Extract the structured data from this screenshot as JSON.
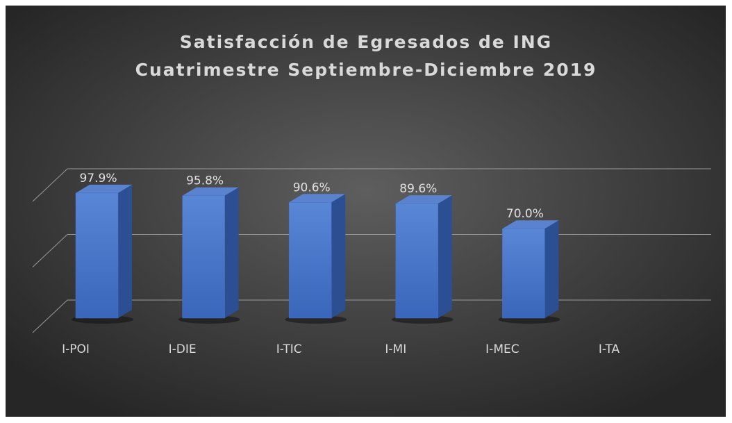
{
  "chart_data": {
    "type": "bar3d",
    "title": [
      "Satisfacción de Egresados de ING",
      "Cuatrimestre Septiembre-Diciembre 2019"
    ],
    "categories": [
      "I-POI",
      "I-DIE",
      "I-TIC",
      "I-MI",
      "I-MEC",
      "I-TA"
    ],
    "values": [
      97.9,
      95.8,
      90.6,
      89.6,
      70.0,
      null
    ],
    "value_labels": [
      "97.9%",
      "95.8%",
      "90.6%",
      "89.6%",
      "70.0%",
      null
    ],
    "color": "#4472c4",
    "ylim": [
      0,
      100
    ],
    "yticks": [
      0,
      50,
      100
    ],
    "grid": true
  }
}
